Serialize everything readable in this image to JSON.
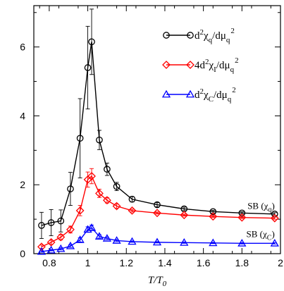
{
  "chart_data": {
    "type": "line",
    "title": "",
    "xlabel": "T/T",
    "xlabel_sub": "0",
    "ylabel": "",
    "xlim": [
      0.72,
      2.0
    ],
    "ylim": [
      0,
      7.2
    ],
    "xticks": [
      0.8,
      1,
      1.2,
      1.4,
      1.6,
      1.8,
      2
    ],
    "xtick_labels": [
      "0.8",
      "1",
      "1.2",
      "1.4",
      "1.6",
      "1.8",
      "2"
    ],
    "yticks": [
      0,
      2,
      4,
      6
    ],
    "ytick_labels": [
      "0",
      "2",
      "4",
      "6"
    ],
    "grid": false,
    "legend_position": "top-right",
    "series": [
      {
        "name": "d2chi_q/dmu_q2",
        "legend": {
          "pre": "d",
          "sup1": "2",
          "mid": "χ",
          "sub": "q",
          "post": "/dμ",
          "sub2": "q",
          "sup2": "2"
        },
        "color": "#000000",
        "marker": "circle",
        "x": [
          0.76,
          0.81,
          0.86,
          0.91,
          0.96,
          1.0,
          1.02,
          1.06,
          1.1,
          1.15,
          1.23,
          1.36,
          1.5,
          1.65,
          1.8,
          1.97
        ],
        "y": [
          0.82,
          0.9,
          0.95,
          1.88,
          3.35,
          5.4,
          6.15,
          3.3,
          2.45,
          1.95,
          1.58,
          1.42,
          1.3,
          1.22,
          1.18,
          1.15
        ],
        "err": [
          0.38,
          0.38,
          0.32,
          0.48,
          1.15,
          1.2,
          0.95,
          0.28,
          0.18,
          0.12,
          0.08,
          0.06,
          0.05,
          0.04,
          0.04,
          0.04
        ]
      },
      {
        "name": "4d2chi_I/dmu_q2",
        "legend": {
          "pre": "4d",
          "sup1": "2",
          "mid": "χ",
          "sub": "I",
          "post": "/dμ",
          "sub2": "q",
          "sup2": "2"
        },
        "color": "#ff0000",
        "marker": "diamond",
        "x": [
          0.76,
          0.81,
          0.86,
          0.91,
          0.96,
          1.0,
          1.02,
          1.06,
          1.1,
          1.15,
          1.23,
          1.36,
          1.5,
          1.65,
          1.8,
          1.97
        ],
        "y": [
          0.2,
          0.33,
          0.48,
          0.7,
          1.25,
          2.15,
          2.25,
          1.75,
          1.55,
          1.38,
          1.25,
          1.18,
          1.12,
          1.08,
          1.05,
          1.03
        ],
        "err": [
          0.05,
          0.06,
          0.08,
          0.1,
          0.15,
          0.22,
          0.22,
          0.12,
          0.08,
          0.06,
          0.04,
          0.03,
          0.03,
          0.03,
          0.03,
          0.03
        ]
      },
      {
        "name": "d2chi_C/dmu_q2",
        "legend": {
          "pre": "d",
          "sup1": "2",
          "mid": "χ",
          "sub": "C",
          "post": "/dμ",
          "sub2": "q",
          "sup2": "2"
        },
        "color": "#0000ff",
        "marker": "triangle",
        "x": [
          0.76,
          0.81,
          0.86,
          0.91,
          0.96,
          1.0,
          1.02,
          1.06,
          1.1,
          1.15,
          1.23,
          1.36,
          1.5,
          1.65,
          1.8,
          1.97
        ],
        "y": [
          0.06,
          0.1,
          0.14,
          0.22,
          0.4,
          0.7,
          0.75,
          0.5,
          0.44,
          0.38,
          0.35,
          0.33,
          0.32,
          0.31,
          0.3,
          0.3
        ],
        "err": [
          0.02,
          0.02,
          0.03,
          0.04,
          0.06,
          0.08,
          0.08,
          0.05,
          0.04,
          0.03,
          0.02,
          0.02,
          0.02,
          0.02,
          0.02,
          0.02
        ]
      }
    ],
    "annotations": [
      {
        "text_main": "SB (χ",
        "text_sub": "q",
        "text_end": ")",
        "x": 1.97,
        "y": 1.3,
        "anchor": "end"
      },
      {
        "text_main": "SB (χ",
        "text_sub": "C",
        "text_end": ")",
        "x": 1.97,
        "y": 0.48,
        "anchor": "end"
      }
    ]
  }
}
